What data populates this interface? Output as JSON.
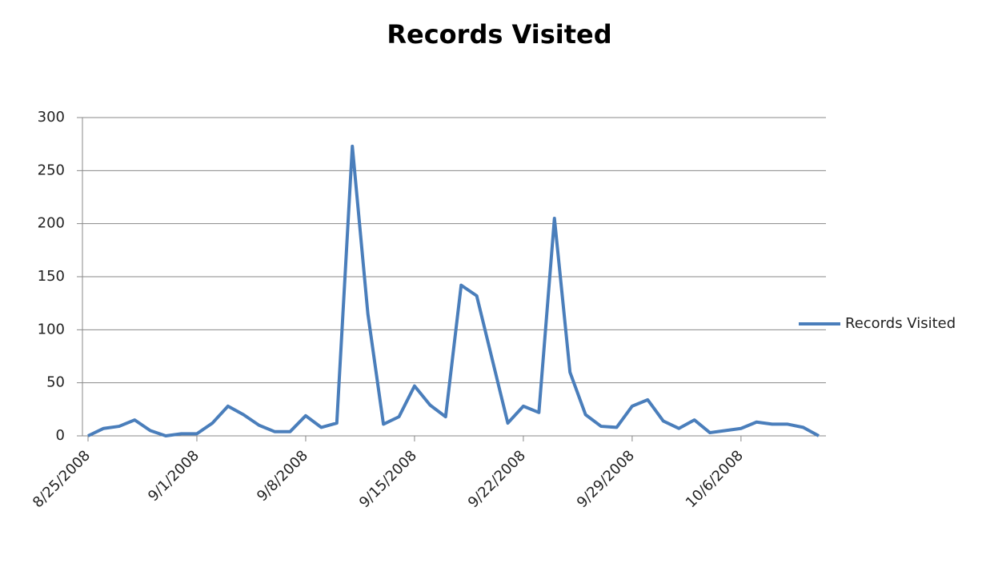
{
  "chart_data": {
    "type": "line",
    "title": "Records Visited",
    "categories": [
      "8/25/2008",
      null,
      null,
      null,
      null,
      null,
      null,
      "9/1/2008",
      null,
      null,
      null,
      null,
      null,
      null,
      "9/8/2008",
      null,
      null,
      null,
      null,
      null,
      null,
      "9/15/2008",
      null,
      null,
      null,
      null,
      null,
      null,
      "9/22/2008",
      null,
      null,
      null,
      null,
      null,
      null,
      "9/29/2008",
      null,
      null,
      null,
      null,
      null,
      null,
      "10/6/2008",
      null,
      null,
      null,
      null,
      null
    ],
    "series": [
      {
        "name": "Records Visited",
        "color": "#4a7ebb",
        "values": [
          0,
          7,
          9,
          15,
          5,
          0,
          2,
          2,
          12,
          28,
          20,
          10,
          4,
          4,
          19,
          8,
          12,
          273,
          115,
          11,
          18,
          47,
          29,
          18,
          142,
          132,
          72,
          12,
          28,
          22,
          205,
          60,
          20,
          9,
          8,
          28,
          34,
          14,
          7,
          15,
          3,
          5,
          7,
          13,
          11,
          11,
          8,
          0
        ]
      }
    ],
    "ylim": [
      0,
      300
    ],
    "yticks": [
      0,
      50,
      100,
      150,
      200,
      250,
      300
    ],
    "grid": true,
    "legend": "right"
  }
}
